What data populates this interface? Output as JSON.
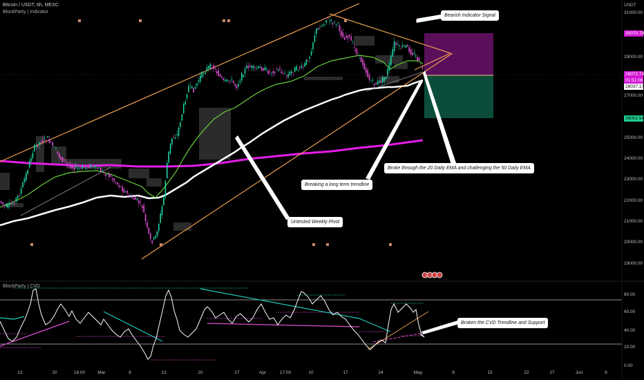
{
  "header": {
    "symbol_line": "Bitcoin / USDT, 6h, MEXC",
    "indicator_line": "BlockParty | Indicator",
    "cvd_line": "BlockParty | CVD"
  },
  "price_axis": {
    "unit_label": "USDT",
    "ticks": [
      "31000.00",
      "29000.00",
      "27000.00",
      "25000.00",
      "24000.00",
      "23000.00",
      "22000.00",
      "21000.00",
      "20000.00",
      "19000.00"
    ],
    "tags": [
      {
        "text": "30070.79",
        "color": "#d418d4"
      },
      {
        "text": "28072.73",
        "color": "#d418d4"
      },
      {
        "text": "01:51:08",
        "color": "#d418d4"
      },
      {
        "text": "28037.17",
        "color": "#ffffff"
      },
      {
        "text": "26002.54",
        "color": "#1fcf8f"
      }
    ]
  },
  "cvd_axis": {
    "ticks": [
      "80.00",
      "60.00",
      "40.00",
      "20.00",
      "0.00"
    ]
  },
  "time_axis": {
    "ticks": [
      "13",
      "20",
      "16:00",
      "Mar",
      "6",
      "13",
      "20",
      "27",
      "Apr",
      "17:00",
      "10",
      "17",
      "24",
      "May",
      "8",
      "15",
      "22",
      "27",
      "Jun",
      "6"
    ]
  },
  "callouts": {
    "bearish": "Bearish Indicator Signal",
    "ema": "Broke through the 20 Daily EMA and challenging the 50 Daily EMA",
    "trendline": "Breaking a long term trendline",
    "pivot": "Untested Weekly Pivot",
    "cvd": "Broken the CVD Trendline and Support"
  },
  "colors": {
    "background": "#000000",
    "up_candle": "#1fd6a6",
    "down_candle": "#e04fd6",
    "ema20": "#6ad13a",
    "ema50": "#ffffff",
    "ema200": "#e51ce8",
    "trendline": "#f0a050",
    "short_loss_zone": "#5a0f5a",
    "short_profit_zone": "#0b4d3a"
  }
}
